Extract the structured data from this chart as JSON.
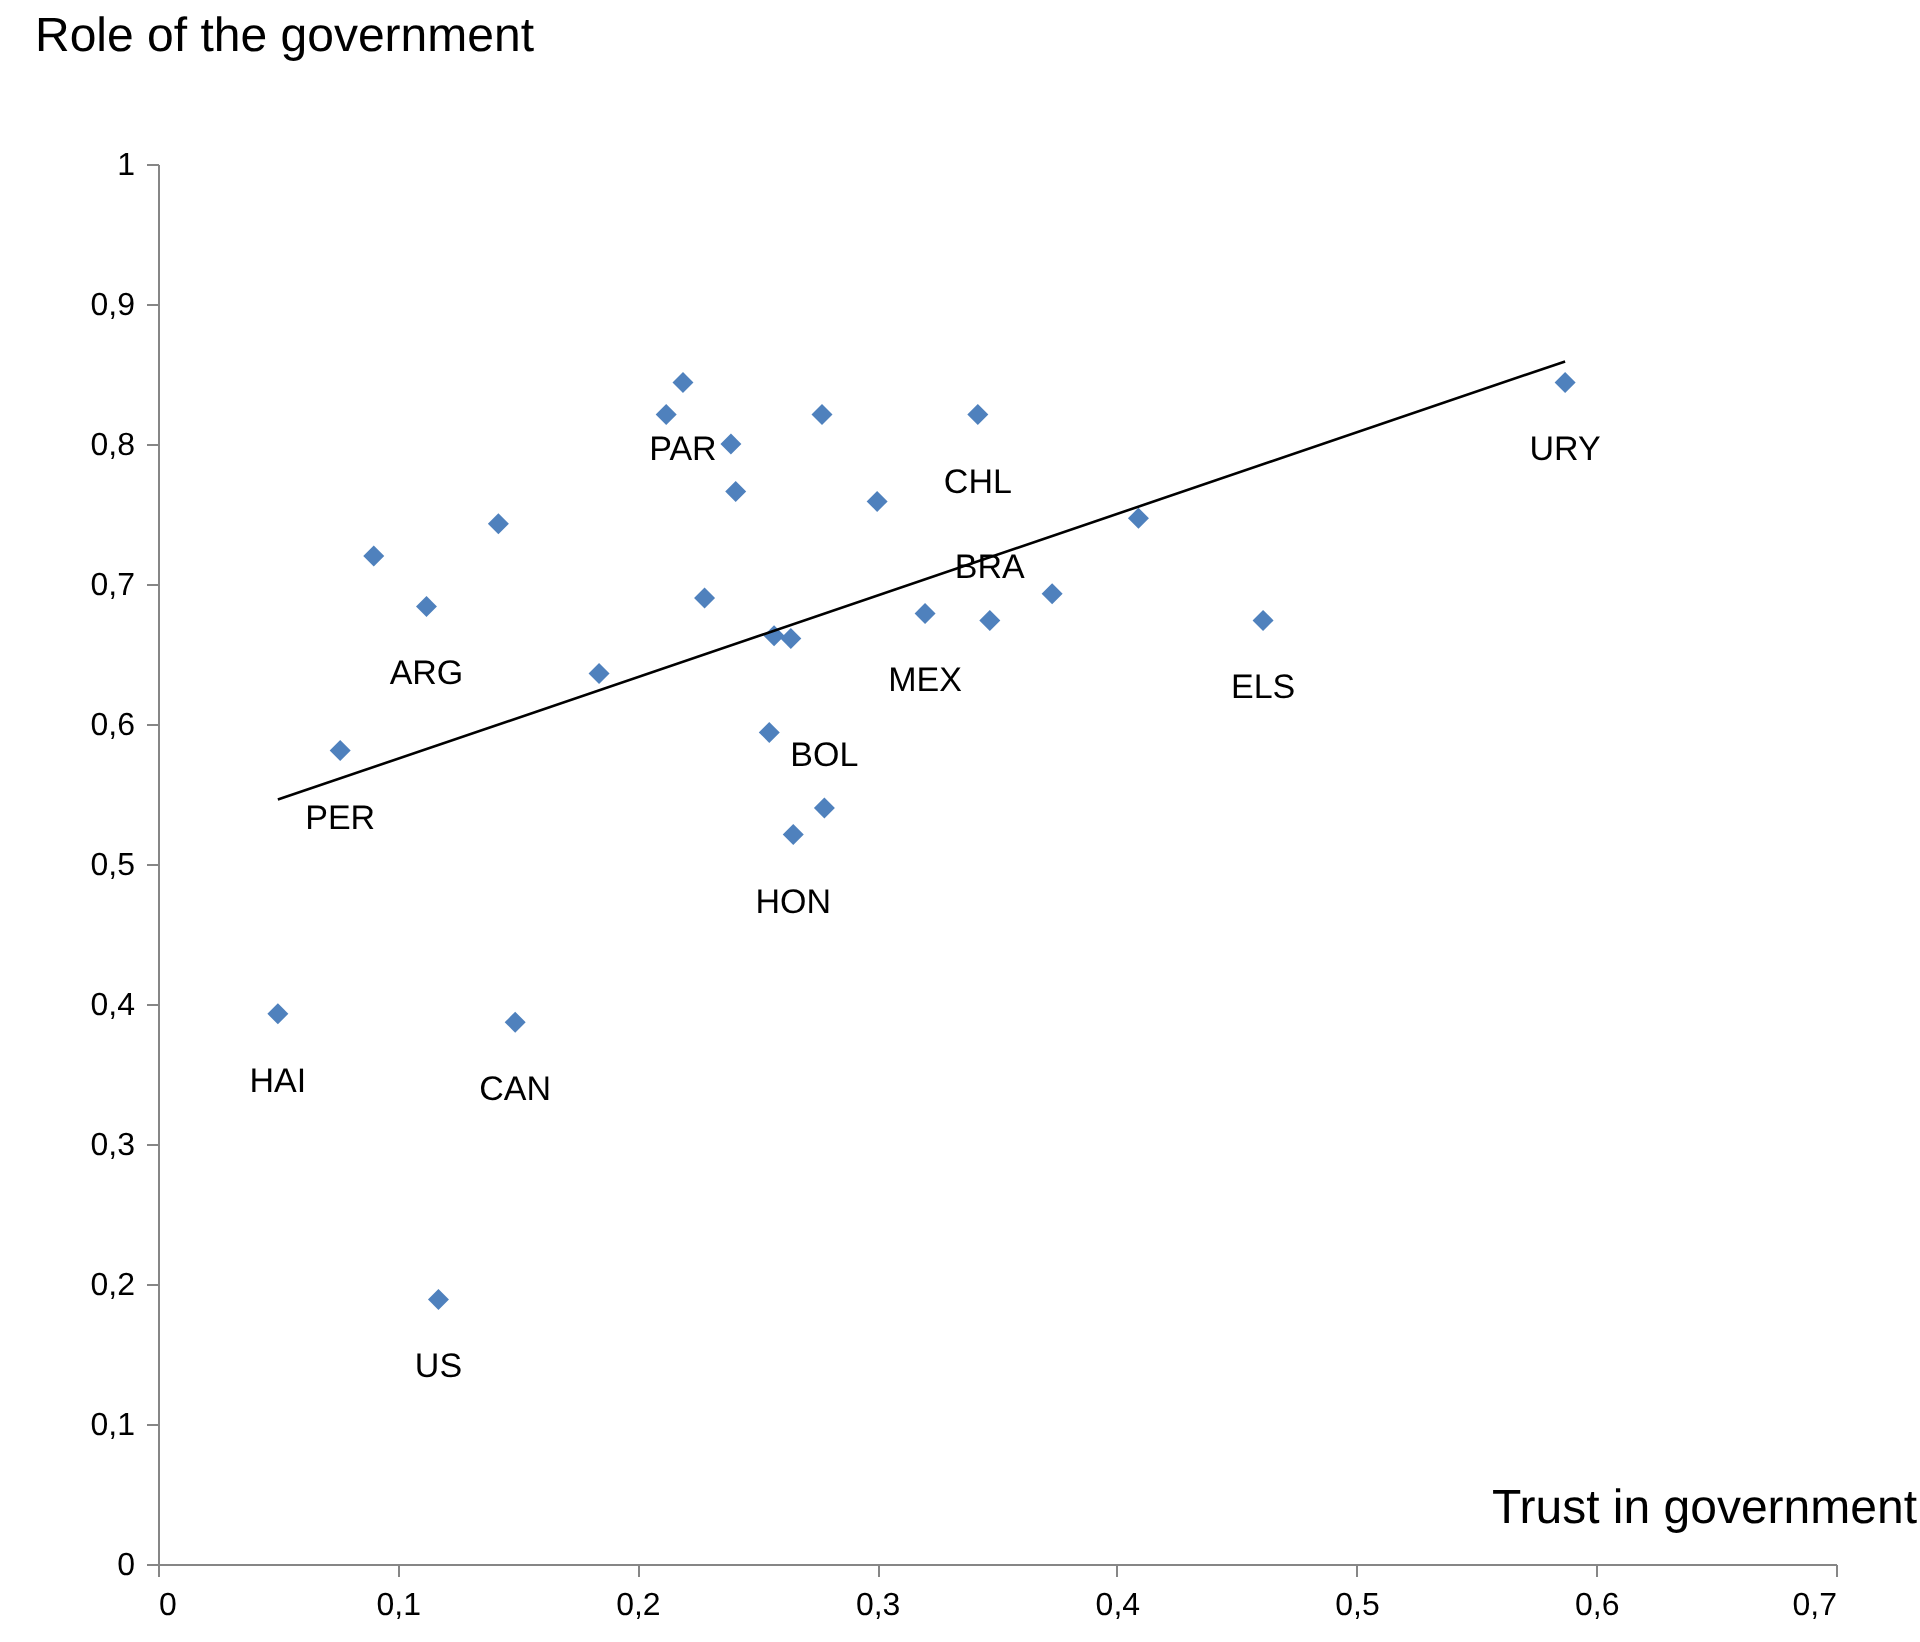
{
  "chart_data": {
    "type": "scatter",
    "xlabel": "Trust in government",
    "ylabel": "Role of the government",
    "xlim": [
      0,
      0.7
    ],
    "xticks": [
      0,
      {
        "value": 0.1,
        "label": "0,1"
      },
      {
        "value": 0.2,
        "label": "0,2"
      },
      {
        "value": 0.3,
        "label": "0,3"
      },
      {
        "value": 0.4,
        "label": "0,4"
      },
      {
        "value": 0.5,
        "label": "0,5"
      },
      {
        "value": 0.6,
        "label": "0,6"
      },
      {
        "value": 0.7,
        "label": "0,7"
      }
    ],
    "ylim": [
      0,
      1
    ],
    "yticks": [
      0,
      {
        "value": 0.1,
        "label": "0,1"
      },
      {
        "value": 0.2,
        "label": "0,2"
      },
      {
        "value": 0.3,
        "label": "0,3"
      },
      {
        "value": 0.4,
        "label": "0,4"
      },
      {
        "value": 0.5,
        "label": "0,5"
      },
      {
        "value": 0.6,
        "label": "0,6"
      },
      {
        "value": 0.7,
        "label": "0,7"
      },
      {
        "value": 0.8,
        "label": "0,8"
      },
      {
        "value": 0.9,
        "label": "0,9"
      },
      1
    ],
    "series": [
      {
        "type": "scatter",
        "marker": "diamond",
        "color": "#4f81bd",
        "x": [
          0.05,
          0.076,
          0.09,
          0.112,
          0.117,
          0.142,
          0.149,
          0.184,
          0.212,
          0.219,
          0.228,
          0.239,
          0.241,
          0.255,
          0.257,
          0.264,
          0.265,
          0.277,
          0.278,
          0.3,
          0.32,
          0.342,
          0.347,
          0.373,
          0.409,
          0.461,
          0.587
        ],
        "values": [
          0.393,
          0.581,
          0.72,
          0.684,
          0.189,
          0.743,
          0.387,
          0.636,
          0.821,
          0.844,
          0.69,
          0.8,
          0.766,
          0.594,
          0.663,
          0.661,
          0.521,
          0.821,
          0.54,
          0.759,
          0.679,
          0.821,
          0.674,
          0.693,
          0.747,
          0.674,
          0.844
        ]
      },
      {
        "type": "line",
        "marker": "none",
        "color": "#000000",
        "x": [
          0.05,
          0.587
        ],
        "values": [
          0.546,
          0.859
        ]
      }
    ],
    "annotations": [
      {
        "text": "HAI",
        "x": 0.05,
        "y": 0.393
      },
      {
        "text": "PER",
        "x": 0.076,
        "y": 0.581
      },
      {
        "text": "ARG",
        "x": 0.112,
        "y": 0.684
      },
      {
        "text": "US",
        "x": 0.117,
        "y": 0.189
      },
      {
        "text": "CAN",
        "x": 0.149,
        "y": 0.387
      },
      {
        "text": "PAR",
        "x": 0.219,
        "y": 0.844
      },
      {
        "text": "HON",
        "x": 0.265,
        "y": 0.521
      },
      {
        "text": "BOL",
        "x": 0.278,
        "y": 0.54
      },
      {
        "text": "MEX",
        "x": 0.32,
        "y": 0.679
      },
      {
        "text": "CHL",
        "x": 0.342,
        "y": 0.821
      },
      {
        "text": "BRA",
        "x": 0.347,
        "y": 0.674
      },
      {
        "text": "ELS",
        "x": 0.461,
        "y": 0.674
      },
      {
        "text": "URY",
        "x": 0.587,
        "y": 0.844
      }
    ]
  }
}
